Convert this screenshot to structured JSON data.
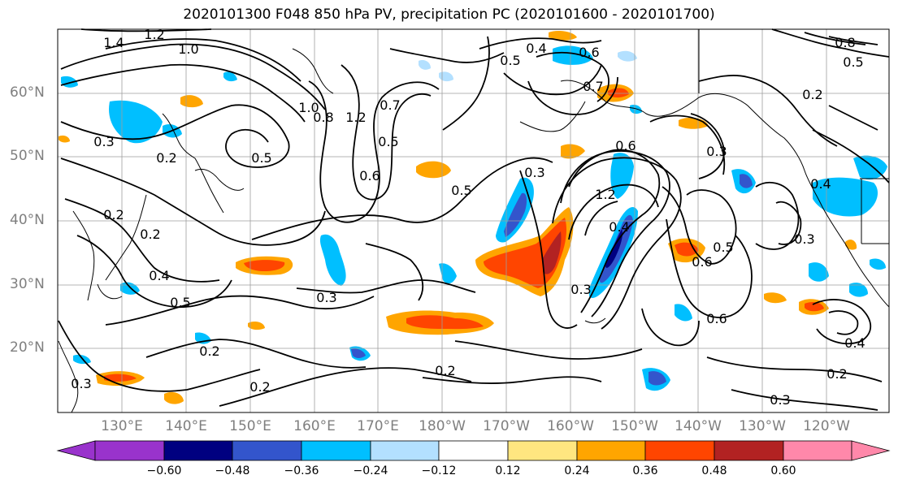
{
  "title": "2020101300 F048 850 hPa PV, precipitation PC (2020101600 - 2020101700)",
  "lat_labels": [
    "60°N",
    "50°N",
    "40°N",
    "30°N",
    "20°N"
  ],
  "lon_labels": [
    "130°E",
    "140°E",
    "150°E",
    "160°E",
    "170°E",
    "180°W",
    "170°W",
    "160°W",
    "150°W",
    "140°W",
    "130°W",
    "120°W"
  ],
  "colorbar": {
    "ticks": [
      "−0.60",
      "−0.48",
      "−0.36",
      "−0.24",
      "−0.12",
      "0.12",
      "0.24",
      "0.36",
      "0.48",
      "0.60"
    ],
    "colors": [
      "#9933cc",
      "#000080",
      "#3355cc",
      "#00bfff",
      "#b3e0ff",
      "#ffffff",
      "#ffe680",
      "#ffa500",
      "#ff4500",
      "#b22222",
      "#ff88aa"
    ]
  },
  "contour_labels": [
    "1.4",
    "1.2",
    "1.0",
    "0.3",
    "0.2",
    "0.5",
    "1.0",
    "0.8",
    "1.2",
    "0.6",
    "0.5",
    "0.7",
    "0.5",
    "0.4",
    "0.6",
    "0.7",
    "0.3",
    "0.5",
    "0.3",
    "0.6",
    "1.2",
    "0.4",
    "0.3",
    "0.2",
    "0.4",
    "0.2",
    "0.5",
    "0.2",
    "0.3",
    "0.2",
    "0.3",
    "0.5",
    "0.6",
    "0.6",
    "0.4",
    "0.2",
    "0.3",
    "0.2",
    "0.3",
    "0.4",
    "0.2",
    "0.8",
    "0.5"
  ]
}
